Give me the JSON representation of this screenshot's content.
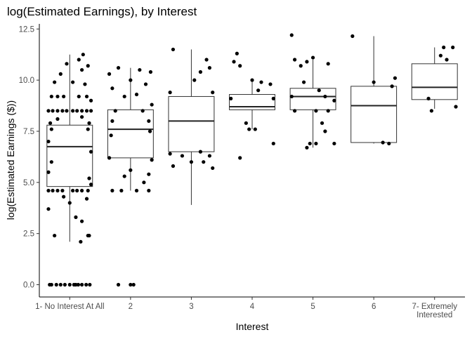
{
  "chart_data": {
    "type": "boxplot",
    "title": "log(Estimated Earnings), by Interest",
    "xlabel": "Interest",
    "ylabel": "log(Estimated Earnings ($))",
    "ylim": [
      -0.6,
      12.75
    ],
    "yticks": [
      0.0,
      2.5,
      5.0,
      7.5,
      10.0,
      12.5
    ],
    "ytick_labels": [
      "0.0",
      "2.5",
      "5.0",
      "7.5",
      "10.0",
      "12.5"
    ],
    "grid": false,
    "categories": [
      [
        "1- No Interest At All"
      ],
      [
        "2"
      ],
      [
        "3"
      ],
      [
        "4"
      ],
      [
        "5"
      ],
      [
        "6"
      ],
      [
        "7- Extremely",
        "Interested"
      ]
    ],
    "boxes": [
      {
        "whisker_low": 2.1,
        "q1": 4.8,
        "median": 6.75,
        "q3": 7.8,
        "whisker_high": 11.25
      },
      {
        "whisker_low": 4.6,
        "q1": 6.2,
        "median": 7.6,
        "q3": 8.55,
        "whisker_high": 10.6
      },
      {
        "whisker_low": 3.9,
        "q1": 6.5,
        "median": 8.0,
        "q3": 9.2,
        "whisker_high": 11.5
      },
      {
        "whisker_low": 7.6,
        "q1": 8.55,
        "median": 8.7,
        "q3": 9.3,
        "whisker_high": 9.9
      },
      {
        "whisker_low": 6.7,
        "q1": 8.55,
        "median": 9.2,
        "q3": 9.6,
        "whisker_high": 11.0
      },
      {
        "whisker_low": 6.9,
        "q1": 6.95,
        "median": 8.75,
        "q3": 9.7,
        "whisker_high": 12.15
      },
      {
        "whisker_low": 8.6,
        "q1": 9.05,
        "median": 9.65,
        "q3": 10.8,
        "whisker_high": 11.6
      }
    ],
    "points": [
      [
        [
          -0.3,
          0.0
        ],
        [
          -0.22,
          0.0
        ],
        [
          -0.15,
          0.0
        ],
        [
          -0.08,
          0.0
        ],
        [
          0.0,
          0.0
        ],
        [
          0.07,
          0.0
        ],
        [
          0.14,
          0.0
        ],
        [
          0.2,
          0.0
        ],
        [
          0.27,
          0.0
        ],
        [
          0.33,
          0.0
        ],
        [
          -0.33,
          0.0
        ],
        [
          0.1,
          0.0
        ],
        [
          -0.25,
          2.4
        ],
        [
          0.32,
          2.4
        ],
        [
          0.2,
          3.1
        ],
        [
          0.1,
          3.3
        ],
        [
          0.3,
          2.4
        ],
        [
          0.18,
          2.1
        ],
        [
          -0.35,
          4.6
        ],
        [
          -0.28,
          4.6
        ],
        [
          -0.2,
          4.6
        ],
        [
          -0.12,
          4.6
        ],
        [
          0.05,
          4.6
        ],
        [
          0.12,
          4.6
        ],
        [
          0.2,
          4.6
        ],
        [
          0.3,
          4.6
        ],
        [
          -0.1,
          4.3
        ],
        [
          0.0,
          4.0
        ],
        [
          0.28,
          4.2
        ],
        [
          -0.35,
          3.7
        ],
        [
          0.35,
          4.9
        ],
        [
          -0.35,
          5.5
        ],
        [
          0.32,
          5.2
        ],
        [
          -0.3,
          6.0
        ],
        [
          0.35,
          6.5
        ],
        [
          -0.35,
          7.0
        ],
        [
          -0.3,
          7.6
        ],
        [
          0.3,
          7.6
        ],
        [
          -0.32,
          7.9
        ],
        [
          0.32,
          7.9
        ],
        [
          -0.2,
          8.1
        ],
        [
          0.2,
          8.2
        ],
        [
          -0.35,
          8.5
        ],
        [
          -0.28,
          8.5
        ],
        [
          -0.2,
          8.5
        ],
        [
          -0.12,
          8.5
        ],
        [
          -0.05,
          8.5
        ],
        [
          0.05,
          8.5
        ],
        [
          0.12,
          8.5
        ],
        [
          0.2,
          8.5
        ],
        [
          0.28,
          8.5
        ],
        [
          0.35,
          8.5
        ],
        [
          -0.3,
          9.2
        ],
        [
          -0.2,
          9.2
        ],
        [
          -0.1,
          9.2
        ],
        [
          0.15,
          9.2
        ],
        [
          0.28,
          9.2
        ],
        [
          0.35,
          9.0
        ],
        [
          -0.25,
          9.9
        ],
        [
          0.05,
          9.9
        ],
        [
          0.25,
          9.8
        ],
        [
          -0.15,
          10.3
        ],
        [
          0.2,
          10.5
        ],
        [
          -0.05,
          10.8
        ],
        [
          0.15,
          11.0
        ],
        [
          0.22,
          11.25
        ],
        [
          0.3,
          10.7
        ]
      ],
      [
        [
          -0.2,
          0.0
        ],
        [
          0.0,
          0.0
        ],
        [
          0.05,
          0.0
        ],
        [
          -0.3,
          4.6
        ],
        [
          -0.15,
          4.6
        ],
        [
          0.1,
          4.6
        ],
        [
          0.3,
          4.6
        ],
        [
          0.22,
          5.0
        ],
        [
          -0.1,
          5.3
        ],
        [
          0.0,
          5.6
        ],
        [
          0.3,
          5.4
        ],
        [
          -0.35,
          6.2
        ],
        [
          0.35,
          6.1
        ],
        [
          -0.32,
          7.3
        ],
        [
          0.32,
          7.5
        ],
        [
          -0.3,
          8.0
        ],
        [
          0.3,
          8.0
        ],
        [
          -0.25,
          8.5
        ],
        [
          0.2,
          8.5
        ],
        [
          0.35,
          8.8
        ],
        [
          -0.1,
          9.2
        ],
        [
          0.1,
          9.3
        ],
        [
          -0.3,
          9.6
        ],
        [
          0.25,
          9.8
        ],
        [
          0.0,
          10.0
        ],
        [
          -0.35,
          10.3
        ],
        [
          -0.2,
          10.6
        ],
        [
          0.15,
          10.5
        ],
        [
          0.33,
          10.4
        ]
      ],
      [
        [
          -0.3,
          5.8
        ],
        [
          -0.15,
          6.3
        ],
        [
          0.0,
          6.0
        ],
        [
          0.2,
          6.0
        ],
        [
          0.3,
          6.3
        ],
        [
          0.35,
          5.7
        ],
        [
          -0.35,
          6.4
        ],
        [
          0.15,
          6.5
        ],
        [
          -0.35,
          9.4
        ],
        [
          0.35,
          9.4
        ],
        [
          0.05,
          10.0
        ],
        [
          0.15,
          10.4
        ],
        [
          0.3,
          10.6
        ],
        [
          -0.3,
          11.5
        ],
        [
          0.25,
          11.0
        ]
      ],
      [
        [
          -0.3,
          10.9
        ],
        [
          -0.25,
          11.3
        ],
        [
          -0.2,
          10.7
        ],
        [
          0.0,
          10.0
        ],
        [
          0.1,
          9.5
        ],
        [
          0.15,
          9.9
        ],
        [
          0.3,
          9.8
        ],
        [
          -0.35,
          9.1
        ],
        [
          0.35,
          9.1
        ],
        [
          -0.1,
          7.9
        ],
        [
          -0.05,
          7.6
        ],
        [
          0.05,
          7.6
        ],
        [
          0.35,
          6.9
        ],
        [
          -0.2,
          6.2
        ]
      ],
      [
        [
          -0.35,
          12.2
        ],
        [
          -0.3,
          11.0
        ],
        [
          -0.2,
          10.7
        ],
        [
          -0.1,
          10.9
        ],
        [
          0.0,
          11.1
        ],
        [
          0.25,
          10.8
        ],
        [
          -0.15,
          9.9
        ],
        [
          0.1,
          9.5
        ],
        [
          -0.35,
          9.2
        ],
        [
          0.2,
          9.2
        ],
        [
          0.35,
          9.0
        ],
        [
          0.05,
          8.5
        ],
        [
          0.25,
          8.5
        ],
        [
          -0.3,
          8.5
        ],
        [
          0.15,
          7.9
        ],
        [
          0.2,
          7.5
        ],
        [
          -0.05,
          6.9
        ],
        [
          0.05,
          6.9
        ],
        [
          0.35,
          6.9
        ],
        [
          -0.1,
          6.7
        ]
      ],
      [
        [
          -0.35,
          12.15
        ],
        [
          0.0,
          9.9
        ],
        [
          0.3,
          9.7
        ],
        [
          0.35,
          10.1
        ],
        [
          0.15,
          6.95
        ],
        [
          0.25,
          6.9
        ]
      ],
      [
        [
          0.15,
          11.6
        ],
        [
          0.3,
          11.6
        ],
        [
          0.1,
          11.2
        ],
        [
          0.2,
          11.0
        ],
        [
          -0.1,
          9.1
        ],
        [
          -0.05,
          8.5
        ],
        [
          0.35,
          8.7
        ]
      ]
    ]
  }
}
